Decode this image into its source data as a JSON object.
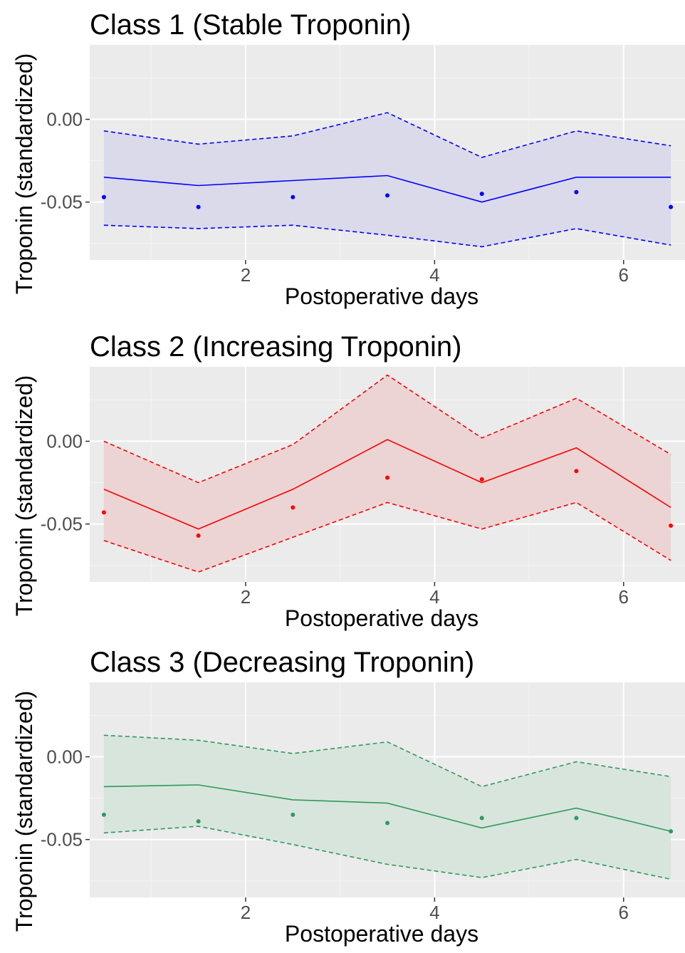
{
  "chart_data": [
    {
      "type": "line",
      "title": "Class 1 (Stable Troponin)",
      "xlabel": "Postoperative days",
      "ylabel": "Troponin (standardized)",
      "xlim": [
        0.35,
        6.65
      ],
      "ylim": [
        -0.085,
        0.045
      ],
      "x_ticks": [
        2,
        4,
        6
      ],
      "y_ticks": [
        0.0,
        -0.05
      ],
      "y_tick_labels": [
        "0.00",
        "-0.05"
      ],
      "grid": true,
      "color": "#0000ff",
      "band_fill": "#dadaeb",
      "x": [
        0.5,
        1.5,
        2.5,
        3.5,
        4.5,
        5.5,
        6.5
      ],
      "series": [
        {
          "role": "mean",
          "style": "solid",
          "values": [
            -0.035,
            -0.04,
            -0.037,
            -0.034,
            -0.05,
            -0.035,
            -0.035
          ]
        },
        {
          "role": "upper",
          "style": "dashed",
          "values": [
            -0.007,
            -0.015,
            -0.01,
            0.004,
            -0.023,
            -0.007,
            -0.016
          ]
        },
        {
          "role": "lower",
          "style": "dashed",
          "values": [
            -0.064,
            -0.066,
            -0.064,
            -0.07,
            -0.077,
            -0.066,
            -0.076
          ]
        },
        {
          "role": "observed",
          "style": "points",
          "values": [
            -0.047,
            -0.053,
            -0.047,
            -0.046,
            -0.045,
            -0.044,
            -0.053
          ]
        }
      ]
    },
    {
      "type": "line",
      "title": "Class 2 (Increasing Troponin)",
      "xlabel": "Postoperative days",
      "ylabel": "Troponin (standardized)",
      "xlim": [
        0.35,
        6.65
      ],
      "ylim": [
        -0.085,
        0.045
      ],
      "x_ticks": [
        2,
        4,
        6
      ],
      "y_ticks": [
        0.0,
        -0.05
      ],
      "y_tick_labels": [
        "0.00",
        "-0.05"
      ],
      "grid": true,
      "color": "#ff0000",
      "band_fill": "#ecd4d4",
      "x": [
        0.5,
        1.5,
        2.5,
        3.5,
        4.5,
        5.5,
        6.5
      ],
      "series": [
        {
          "role": "mean",
          "style": "solid",
          "values": [
            -0.029,
            -0.053,
            -0.029,
            0.001,
            -0.025,
            -0.004,
            -0.04
          ]
        },
        {
          "role": "upper",
          "style": "dashed",
          "values": [
            0.0,
            -0.025,
            -0.002,
            0.04,
            0.002,
            0.026,
            -0.008
          ]
        },
        {
          "role": "lower",
          "style": "dashed",
          "values": [
            -0.06,
            -0.079,
            -0.058,
            -0.037,
            -0.053,
            -0.037,
            -0.072
          ]
        },
        {
          "role": "observed",
          "style": "points",
          "values": [
            -0.043,
            -0.057,
            -0.04,
            -0.022,
            -0.023,
            -0.018,
            -0.051
          ]
        }
      ]
    },
    {
      "type": "line",
      "title": "Class 3 (Decreasing Troponin)",
      "xlabel": "Postoperative days",
      "ylabel": "Troponin (standardized)",
      "xlim": [
        0.35,
        6.65
      ],
      "ylim": [
        -0.085,
        0.045
      ],
      "x_ticks": [
        2,
        4,
        6
      ],
      "y_ticks": [
        0.0,
        -0.05
      ],
      "y_tick_labels": [
        "0.00",
        "-0.05"
      ],
      "grid": true,
      "color": "#2e9a5c",
      "band_fill": "#d8e5dc",
      "x": [
        0.5,
        1.5,
        2.5,
        3.5,
        4.5,
        5.5,
        6.5
      ],
      "series": [
        {
          "role": "mean",
          "style": "solid",
          "values": [
            -0.018,
            -0.017,
            -0.026,
            -0.028,
            -0.043,
            -0.031,
            -0.045
          ]
        },
        {
          "role": "upper",
          "style": "dashed",
          "values": [
            0.013,
            0.01,
            0.002,
            0.009,
            -0.018,
            -0.003,
            -0.012
          ]
        },
        {
          "role": "lower",
          "style": "dashed",
          "values": [
            -0.046,
            -0.042,
            -0.053,
            -0.065,
            -0.073,
            -0.062,
            -0.074
          ]
        },
        {
          "role": "observed",
          "style": "points",
          "values": [
            -0.035,
            -0.039,
            -0.035,
            -0.04,
            -0.037,
            -0.037,
            -0.045
          ]
        }
      ]
    }
  ]
}
